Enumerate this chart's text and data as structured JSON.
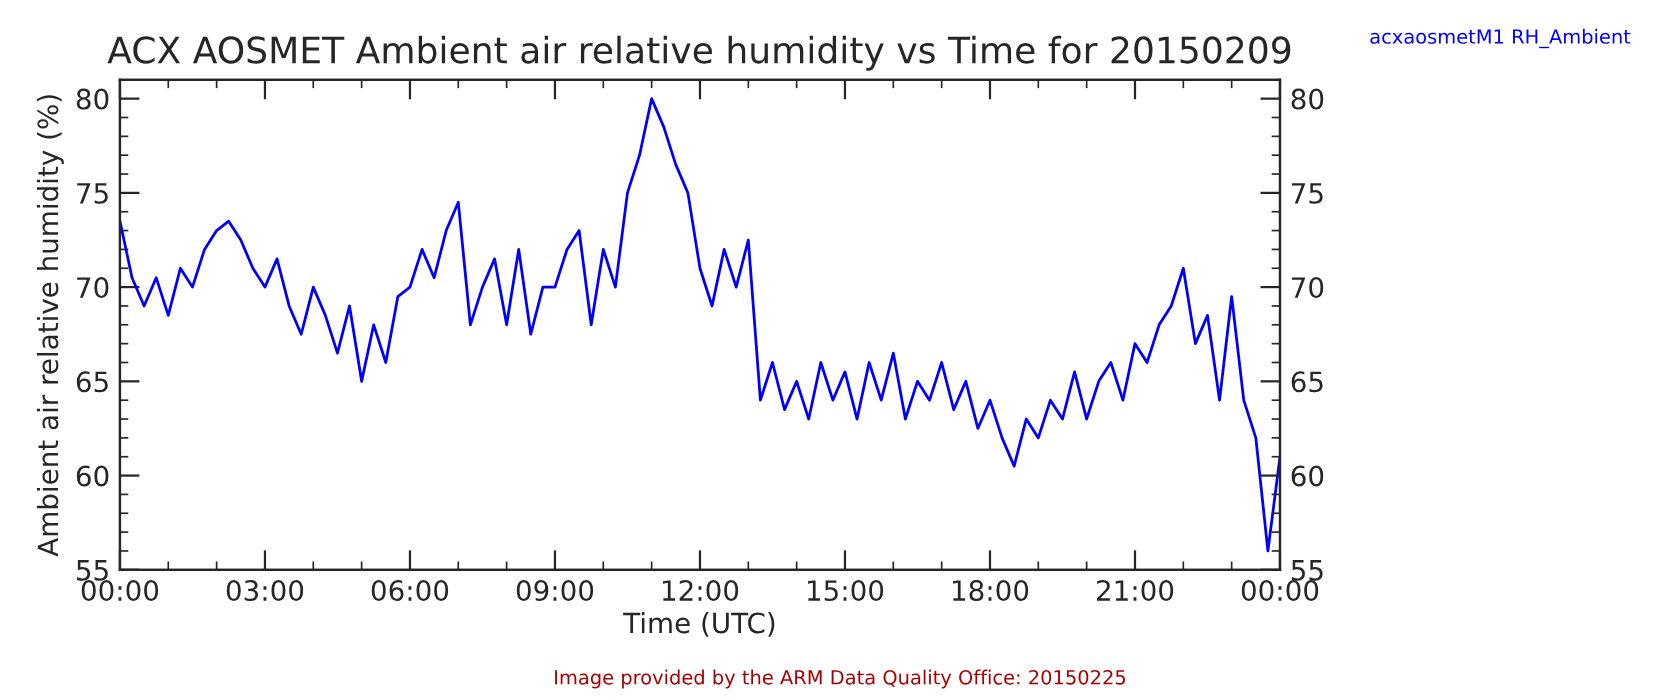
{
  "chart_data": {
    "type": "line",
    "title": "ACX AOSMET Ambient air relative humidity vs Time for 20150209",
    "xlabel": "Time (UTC)",
    "ylabel": "Ambient air relative humidity (%)",
    "annotations": [
      "Image provided by the ARM Data Quality Office: 20150225"
    ],
    "x": [
      0,
      0.25,
      0.5,
      0.75,
      1,
      1.25,
      1.5,
      1.75,
      2,
      2.25,
      2.5,
      2.75,
      3,
      3.25,
      3.5,
      3.75,
      4,
      4.25,
      4.5,
      4.75,
      5,
      5.25,
      5.5,
      5.75,
      6,
      6.25,
      6.5,
      6.75,
      7,
      7.25,
      7.5,
      7.75,
      8,
      8.25,
      8.5,
      8.75,
      9,
      9.25,
      9.5,
      9.75,
      10,
      10.25,
      10.5,
      10.75,
      11,
      11.25,
      11.5,
      11.75,
      12,
      12.25,
      12.5,
      12.75,
      13,
      13.25,
      13.5,
      13.75,
      14,
      14.25,
      14.5,
      14.75,
      15,
      15.25,
      15.5,
      15.75,
      16,
      16.25,
      16.5,
      16.75,
      17,
      17.25,
      17.5,
      17.75,
      18,
      18.25,
      18.5,
      18.75,
      19,
      19.25,
      19.5,
      19.75,
      20,
      20.25,
      20.5,
      20.75,
      21,
      21.25,
      21.5,
      21.75,
      22,
      22.25,
      22.5,
      22.75,
      23,
      23.25,
      23.5,
      23.75,
      24
    ],
    "series": [
      {
        "name": "acxaosmetM1 RH_Ambient",
        "color": "#0000ff",
        "values": [
          73.5,
          70.5,
          69,
          70.5,
          68.5,
          71,
          70,
          72,
          73,
          73.5,
          72.5,
          71,
          70,
          71.5,
          69,
          67.5,
          70,
          68.5,
          66.5,
          69,
          65,
          68,
          66,
          69.5,
          70,
          72,
          70.5,
          73,
          74.5,
          68,
          70,
          71.5,
          68,
          72,
          67.5,
          70,
          70,
          72,
          73,
          68,
          72,
          70,
          75,
          77,
          80,
          78.5,
          76.5,
          75,
          71,
          69,
          72,
          70,
          72.5,
          64,
          66,
          63.5,
          65,
          63,
          66,
          64,
          65.5,
          63,
          66,
          64,
          66.5,
          63,
          65,
          64,
          66,
          63.5,
          65,
          62.5,
          64,
          62,
          60.5,
          63,
          62,
          64,
          63,
          65.5,
          63,
          65,
          66,
          64,
          67,
          66,
          68,
          69,
          71,
          67,
          68.5,
          64,
          69.5,
          64,
          62,
          56,
          61
        ]
      }
    ],
    "xlim": [
      0,
      24
    ],
    "xticks": [
      {
        "value": 0,
        "label": "00:00"
      },
      {
        "value": 3,
        "label": "03:00"
      },
      {
        "value": 6,
        "label": "06:00"
      },
      {
        "value": 9,
        "label": "09:00"
      },
      {
        "value": 12,
        "label": "12:00"
      },
      {
        "value": 15,
        "label": "15:00"
      },
      {
        "value": 18,
        "label": "18:00"
      },
      {
        "value": 21,
        "label": "21:00"
      },
      {
        "value": 24,
        "label": "00:00"
      }
    ],
    "ylim": [
      55,
      81
    ],
    "yticks": [
      55,
      60,
      65,
      70,
      75,
      80
    ],
    "y2lim": [
      55,
      81
    ],
    "y2ticks": [
      55,
      60,
      65,
      70,
      75,
      80
    ],
    "grid": false,
    "marker": "none",
    "line_style": "solid"
  }
}
